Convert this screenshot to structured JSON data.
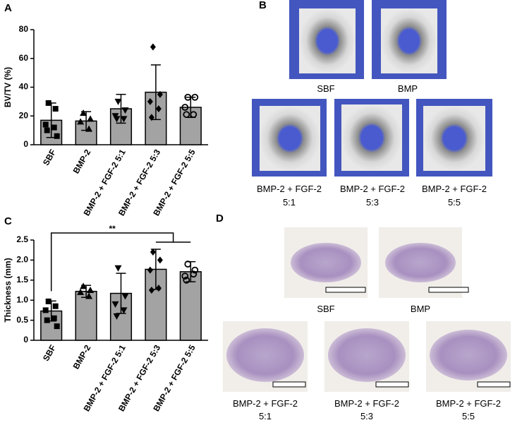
{
  "chart_data": [
    {
      "type": "bar",
      "panel": "A",
      "ylabel": "BV/TV (%)",
      "categories": [
        "SBF",
        "BMP-2",
        "BMP-2 + FGF-2 5:1",
        "BMP-2 + FGF-2 5:3",
        "BMP-2 + FGF-2 5:5"
      ],
      "values": [
        17,
        16.5,
        25,
        36.5,
        26
      ],
      "errors": [
        12,
        6.5,
        10,
        19,
        7
      ],
      "points": [
        [
          29,
          25,
          14,
          12,
          10,
          6
        ],
        [
          22,
          18,
          16,
          11
        ],
        [
          30,
          24,
          20,
          18,
          18
        ],
        [
          68,
          35,
          30,
          25,
          19
        ],
        [
          33,
          33,
          26,
          21,
          21
        ]
      ],
      "markers": [
        "square",
        "triangle",
        "triangle-down",
        "diamond",
        "circle"
      ],
      "color": "#a3a3a3",
      "ylim": [
        0,
        80
      ],
      "yticks": [
        0,
        20,
        40,
        60,
        80
      ]
    },
    {
      "type": "bar",
      "panel": "C",
      "ylabel": "Thickness (mm)",
      "categories": [
        "SBF",
        "BMP-2",
        "BMP-2 + FGF-2 5:1",
        "BMP-2 + FGF-2 5:3",
        "BMP-2 + FGF-2 5:5"
      ],
      "values": [
        0.73,
        1.22,
        1.17,
        1.77,
        1.71
      ],
      "errors": [
        0.25,
        0.15,
        0.5,
        0.5,
        0.25
      ],
      "points": [
        [
          0.97,
          0.85,
          0.75,
          0.55,
          0.5,
          0.35
        ],
        [
          1.35,
          1.25,
          1.2,
          1.1
        ],
        [
          1.8,
          1.1,
          0.9,
          0.75,
          0.6
        ],
        [
          2.2,
          2.0,
          1.75,
          1.3,
          1.25
        ],
        [
          1.9,
          1.75,
          1.6,
          1.65,
          1.5
        ]
      ],
      "markers": [
        "square",
        "triangle",
        "triangle-down",
        "diamond",
        "circle"
      ],
      "annotation": "**",
      "color": "#a3a3a3",
      "ylim": [
        0,
        2.5
      ],
      "yticks": [
        0,
        0.5,
        {
          "value": 1,
          "label": "1.0"
        },
        1.5,
        {
          "value": 2,
          "label": "2.0"
        },
        2.5
      ]
    }
  ],
  "panels": {
    "B": {
      "label": "B",
      "captions": [
        "SBF",
        "BMP",
        "BMP-2 + FGF-2",
        "5:1",
        "BMP-2 + FGF-2",
        "5:3",
        "BMP-2 + FGF-2",
        "5:5"
      ]
    },
    "D": {
      "label": "D",
      "captions": [
        "SBF",
        "BMP",
        "BMP-2 + FGF-2",
        "5:1",
        "BMP-2 + FGF-2",
        "5:3",
        "BMP-2 + FGF-2",
        "5:5"
      ]
    }
  }
}
